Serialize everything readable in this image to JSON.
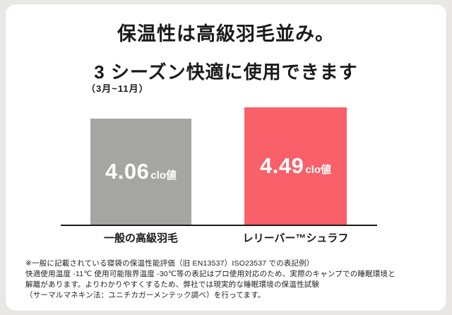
{
  "page": {
    "title": "保温性は高級羽毛並み。",
    "subtitle": "3 シーズン快適に使用できます",
    "season_note": "（3月~11月）"
  },
  "chart_data": {
    "type": "bar",
    "title": "保温性は高級羽毛並み。",
    "subtitle": "3 シーズン快適に使用できます（3月~11月）",
    "categories": [
      "一般の高級羽毛",
      "レリーバー™シュラフ"
    ],
    "values": [
      4.06,
      4.49
    ],
    "value_labels": [
      "4.06",
      "4.49"
    ],
    "value_unit": "clo値",
    "series_colors": [
      "#a5a5a3",
      "#f9606a"
    ],
    "ylim": [
      0,
      4.49
    ],
    "grid": false,
    "legend": "none",
    "xlabel": "",
    "ylabel": ""
  },
  "footnote": {
    "lines": [
      "※一般に記載されている寝袋の保温性能評価（旧 EN13537）ISO23537 での表記例）",
      "快適使用温度 -11℃ 使用可能限界温度 -30℃等の表記はプロ使用対応のため、実際のキャンプでの睡眠環境と",
      "解離があります。よりわかりやすくするため、弊社では現実的な睡眠環境の保温性試験",
      "（サーマルマネキン法：ユニチカガーメンテック調べ）を行ってます。"
    ]
  },
  "colors": {
    "background": "#e9e8e5",
    "card": "#ffffff",
    "bar_gray": "#a5a5a3",
    "bar_red": "#f9606a",
    "text": "#1a1a1a",
    "value_text": "#ffffff"
  }
}
